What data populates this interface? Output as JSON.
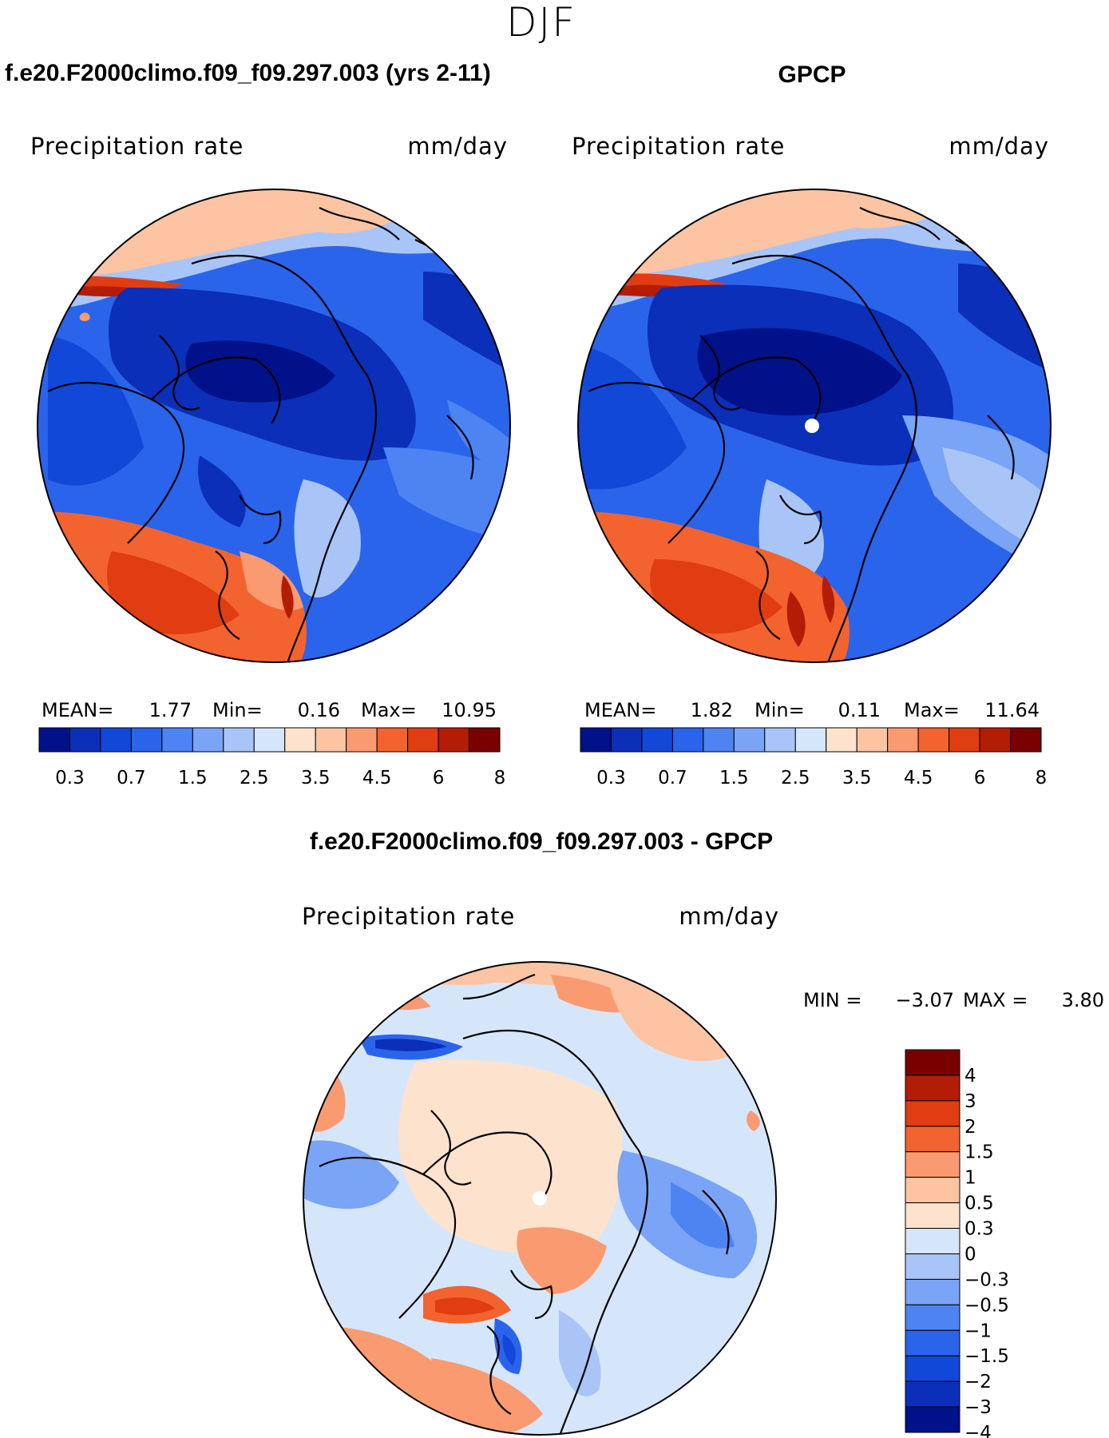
{
  "season": "DJF",
  "panels": {
    "model": {
      "title": "f.e20.F2000climo.f09_f09.297.003 (yrs 2-11)",
      "var_label": "Precipitation rate",
      "units_label": "mm/day",
      "stats": {
        "mean_label": "MEAN=",
        "mean": "1.77",
        "min_label": "Min=",
        "min": "0.16",
        "max_label": "Max=",
        "max": "10.95"
      }
    },
    "obs": {
      "title": "GPCP",
      "var_label": "Precipitation rate",
      "units_label": "mm/day",
      "stats": {
        "mean_label": "MEAN=",
        "mean": "1.82",
        "min_label": "Min=",
        "min": "0.11",
        "max_label": "Max=",
        "max": "11.64"
      }
    },
    "diff": {
      "title": "f.e20.F2000climo.f09_f09.297.003 - GPCP",
      "var_label": "Precipitation rate",
      "units_label": "mm/day",
      "stats": {
        "min_label": "MIN =",
        "min": "−3.07",
        "max_label": "MAX =",
        "max": "3.80"
      }
    }
  },
  "chart_data": [
    {
      "type": "heatmap",
      "projection": "north polar stereographic",
      "title": "f.e20.F2000climo.f09_f09.297.003 (yrs 2-11)",
      "variable": "Precipitation rate",
      "units": "mm/day",
      "mean": 1.77,
      "min": 0.16,
      "max": 10.95,
      "colorbar_ticks": [
        "0.3",
        "0.7",
        "1.5",
        "2.5",
        "3.5",
        "4.5",
        "6",
        "8"
      ],
      "colors": [
        "#00118a",
        "#0b2fb8",
        "#1248d8",
        "#2a64eb",
        "#4d84f2",
        "#7aa4f5",
        "#a9c5f7",
        "#d6e6fa",
        "#fde3cd",
        "#fcc4a2",
        "#fa9a70",
        "#f3632f",
        "#e03d12",
        "#b31d06",
        "#7a0000"
      ]
    },
    {
      "type": "heatmap",
      "projection": "north polar stereographic",
      "title": "GPCP",
      "variable": "Precipitation rate",
      "units": "mm/day",
      "mean": 1.82,
      "min": 0.11,
      "max": 11.64,
      "colorbar_ticks": [
        "0.3",
        "0.7",
        "1.5",
        "2.5",
        "3.5",
        "4.5",
        "6",
        "8"
      ],
      "colors": [
        "#00118a",
        "#0b2fb8",
        "#1248d8",
        "#2a64eb",
        "#4d84f2",
        "#7aa4f5",
        "#a9c5f7",
        "#d6e6fa",
        "#fde3cd",
        "#fcc4a2",
        "#fa9a70",
        "#f3632f",
        "#e03d12",
        "#b31d06",
        "#7a0000"
      ]
    },
    {
      "type": "heatmap",
      "projection": "north polar stereographic",
      "title": "f.e20.F2000climo.f09_f09.297.003 - GPCP",
      "variable": "Precipitation rate",
      "units": "mm/day",
      "min": -3.07,
      "max": 3.8,
      "colorbar_ticks": [
        "4",
        "3",
        "2",
        "1.5",
        "1",
        "0.5",
        "0.3",
        "0",
        "−0.3",
        "−0.5",
        "−1",
        "−1.5",
        "−2",
        "−3",
        "−4"
      ],
      "colors": [
        "#7a0000",
        "#b31d06",
        "#e03d12",
        "#f3632f",
        "#fa9a70",
        "#fcc4a2",
        "#fde3cd",
        "#d6e6fa",
        "#a9c5f7",
        "#7aa4f5",
        "#4d84f2",
        "#2a64eb",
        "#1248d8",
        "#0b2fb8",
        "#00118a"
      ]
    }
  ]
}
